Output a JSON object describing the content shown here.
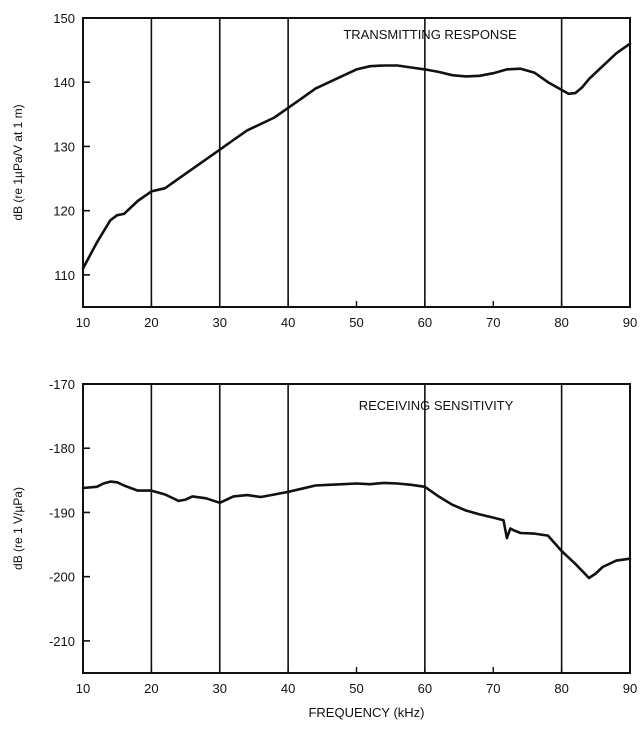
{
  "chart_data": [
    {
      "type": "line",
      "title": "TRANSMITTING RESPONSE",
      "xlabel": "",
      "ylabel": "dB (re 1µPa/V at 1 m)",
      "xlim": [
        10,
        90
      ],
      "ylim": [
        105,
        150
      ],
      "xticks": [
        10,
        20,
        30,
        40,
        50,
        60,
        70,
        80,
        90
      ],
      "yticks": [
        110,
        120,
        130,
        140,
        150
      ],
      "grid": "vertical",
      "colors": {
        "line": "#111111",
        "grid": "#111111"
      },
      "series": [
        {
          "x": [
            10,
            12,
            14,
            15,
            16,
            18,
            20,
            22,
            24,
            26,
            28,
            30,
            32,
            34,
            36,
            38,
            40,
            42,
            44,
            46,
            48,
            50,
            52,
            54,
            56,
            58,
            60,
            62,
            64,
            66,
            68,
            70,
            72,
            74,
            76,
            78,
            80,
            81,
            82,
            83,
            84,
            86,
            88,
            90
          ],
          "values": [
            111,
            115,
            118.5,
            119.3,
            119.5,
            121.5,
            123,
            123.5,
            125,
            126.5,
            128,
            129.5,
            131,
            132.5,
            133.5,
            134.5,
            136,
            137.5,
            139,
            140,
            141,
            142,
            142.5,
            142.6,
            142.6,
            142.3,
            142,
            141.6,
            141.1,
            140.9,
            141,
            141.4,
            142,
            142.1,
            141.5,
            140,
            138.8,
            138.2,
            138.3,
            139.2,
            140.5,
            142.5,
            144.5,
            146
          ]
        }
      ]
    },
    {
      "type": "line",
      "title": "RECEIVING SENSITIVITY",
      "xlabel": "FREQUENCY (kHz)",
      "ylabel": "dB (re 1 V/µPa)",
      "xlim": [
        10,
        90
      ],
      "ylim": [
        -215,
        -170
      ],
      "xticks": [
        10,
        20,
        30,
        40,
        50,
        60,
        70,
        80,
        90
      ],
      "yticks": [
        -170,
        -180,
        -190,
        -200,
        -210
      ],
      "grid": "vertical",
      "colors": {
        "line": "#111111",
        "grid": "#111111"
      },
      "series": [
        {
          "x": [
            10,
            12,
            13,
            14,
            15,
            16,
            18,
            20,
            22,
            24,
            25,
            26,
            28,
            30,
            32,
            34,
            36,
            38,
            40,
            42,
            44,
            46,
            48,
            50,
            52,
            54,
            56,
            58,
            60,
            62,
            64,
            66,
            68,
            70,
            71.5,
            72,
            72.5,
            73,
            74,
            76,
            78,
            80,
            82,
            84,
            85,
            86,
            88,
            90
          ],
          "values": [
            -186.2,
            -186,
            -185.5,
            -185.2,
            -185.3,
            -185.8,
            -186.6,
            -186.6,
            -187.2,
            -188.2,
            -188,
            -187.5,
            -187.8,
            -188.5,
            -187.5,
            -187.3,
            -187.6,
            -187.2,
            -186.8,
            -186.3,
            -185.8,
            -185.7,
            -185.6,
            -185.5,
            -185.6,
            -185.4,
            -185.5,
            -185.7,
            -186,
            -187.5,
            -188.8,
            -189.7,
            -190.3,
            -190.8,
            -191.2,
            -194,
            -192.5,
            -192.8,
            -193.2,
            -193.3,
            -193.6,
            -196,
            -198,
            -200.2,
            -199.5,
            -198.5,
            -197.5,
            -197.2
          ]
        }
      ]
    }
  ]
}
